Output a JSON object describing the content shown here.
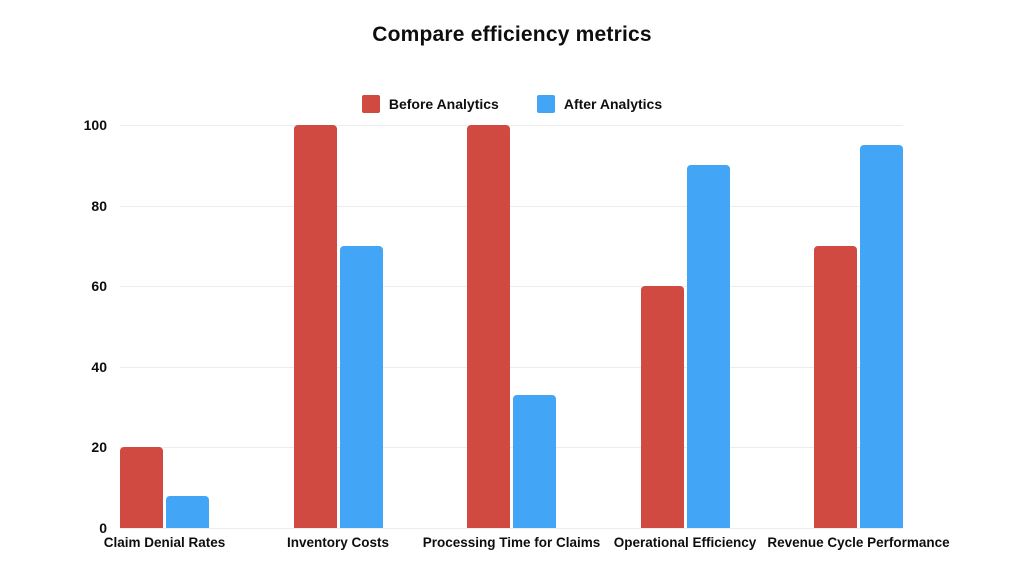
{
  "title": "Compare efficiency metrics",
  "colors": {
    "background": "#ffffff",
    "grid": "#ececec",
    "text": "#0e0e0e",
    "before_series": "#d04a42",
    "after_series": "#42a5f5"
  },
  "chart_data": {
    "type": "bar",
    "title": "Compare efficiency metrics",
    "categories": [
      "Claim Denial Rates",
      "Inventory Costs",
      "Processing Time for Claims",
      "Operational Efficiency",
      "Revenue Cycle Performance"
    ],
    "series": [
      {
        "name": "Before Analytics",
        "color": "#d04a42",
        "values": [
          20,
          100,
          100,
          60,
          70
        ]
      },
      {
        "name": "After Analytics",
        "color": "#42a5f5",
        "values": [
          8,
          70,
          33,
          90,
          95
        ]
      }
    ],
    "xlabel": "",
    "ylabel": "",
    "ylim": [
      0,
      100
    ],
    "yticks": [
      0,
      20,
      40,
      60,
      80,
      100
    ],
    "grid": true,
    "legend_position": "top"
  }
}
